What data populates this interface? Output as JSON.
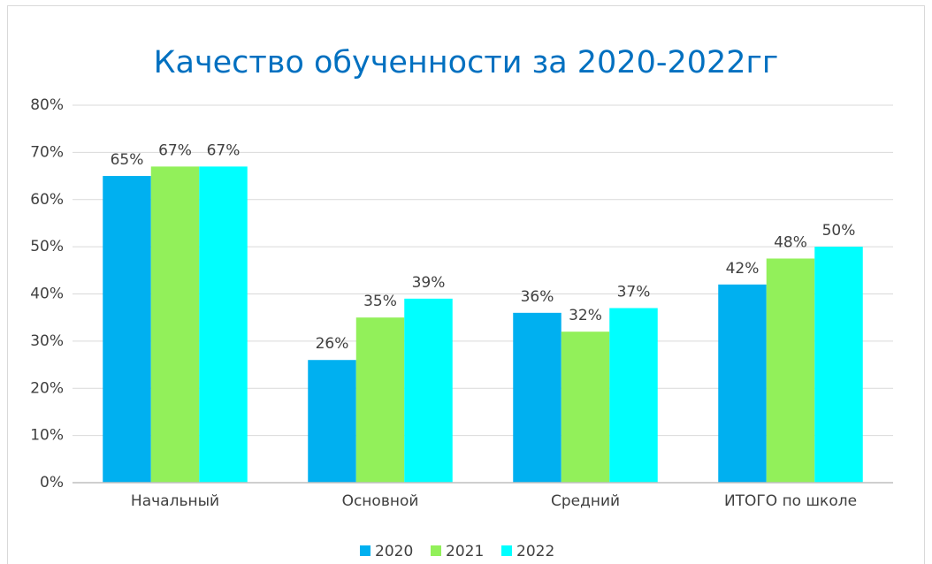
{
  "chart_data": {
    "type": "bar",
    "title": "Качество обученности за 2020-2022гг",
    "categories": [
      "Начальный",
      "Основной",
      "Средний",
      "ИТОГО по школе"
    ],
    "series": [
      {
        "name": "2020",
        "color": "#00b0f0",
        "values": [
          65,
          26,
          36,
          42
        ],
        "value_labels": [
          "65%",
          "26%",
          "36%",
          "42%"
        ]
      },
      {
        "name": "2021",
        "color": "#92f05a",
        "values": [
          67,
          35,
          32,
          47.5
        ],
        "value_labels": [
          "67%",
          "35%",
          "32%",
          "48%"
        ]
      },
      {
        "name": "2022",
        "color": "#00ffff",
        "values": [
          67,
          39,
          37,
          50
        ],
        "value_labels": [
          "67%",
          "39%",
          "37%",
          "50%"
        ]
      }
    ],
    "ylim": [
      0,
      80
    ],
    "yticks": [
      {
        "value": 0,
        "label": "0%"
      },
      {
        "value": 10,
        "label": "10%"
      },
      {
        "value": 20,
        "label": "20%"
      },
      {
        "value": 30,
        "label": "30%"
      },
      {
        "value": 40,
        "label": "40%"
      },
      {
        "value": 50,
        "label": "50%"
      },
      {
        "value": 60,
        "label": "60%"
      },
      {
        "value": 70,
        "label": "70%"
      },
      {
        "value": 80,
        "label": "80%"
      }
    ],
    "grid": true,
    "legend": "bottom"
  }
}
